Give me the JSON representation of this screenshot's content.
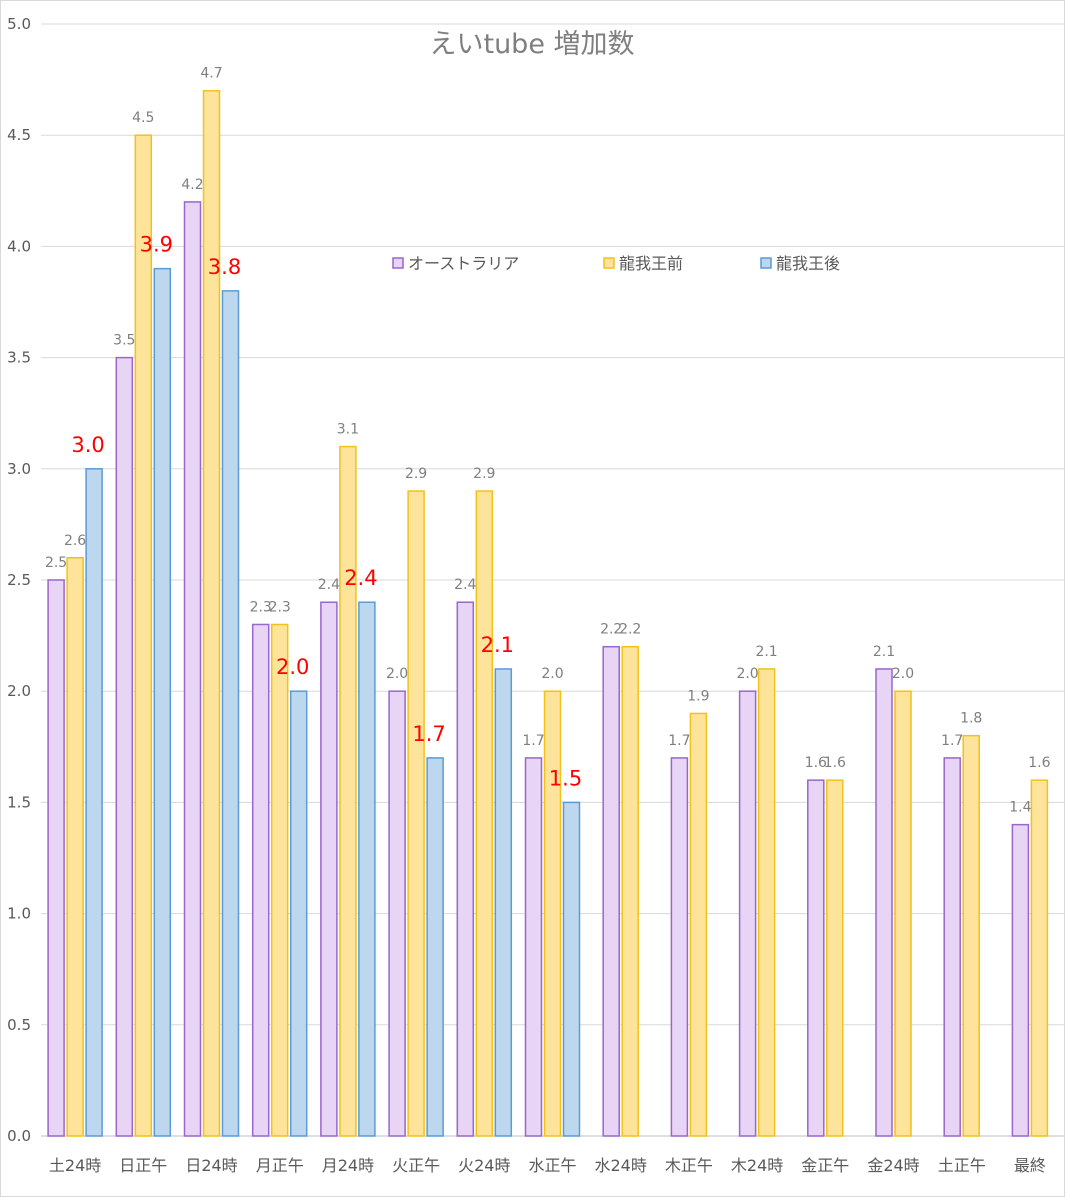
{
  "chart_data": {
    "type": "bar",
    "title": "えいtube  増加数",
    "xlabel": "",
    "ylabel": "",
    "ylim": [
      0,
      5
    ],
    "y_ticks": [
      "0.0",
      "0.5",
      "1.0",
      "1.5",
      "2.0",
      "2.5",
      "3.0",
      "3.5",
      "4.0",
      "4.5",
      "5.0"
    ],
    "grid": true,
    "legend_position": "upper-middle",
    "categories": [
      "土24時",
      "日正午",
      "日24時",
      "月正午",
      "月24時",
      "火正午",
      "火24時",
      "水正午",
      "水24時",
      "木正午",
      "木24時",
      "金正午",
      "金24時",
      "土正午",
      "最終"
    ],
    "series": [
      {
        "name": "オーストラリア",
        "fill": "#e8d5f5",
        "stroke": "#9966cc",
        "label_style": "gray",
        "values": [
          2.5,
          3.5,
          4.2,
          2.3,
          2.4,
          2.0,
          2.4,
          1.7,
          2.2,
          1.7,
          2.0,
          1.6,
          2.1,
          1.7,
          1.4
        ],
        "labels": [
          "2.5",
          "3.5",
          "4.2",
          "2.3",
          "2.4",
          "2.0",
          "2.4",
          "1.7",
          "2.2",
          "1.7",
          "2.0",
          "1.6",
          "2.1",
          "1.7",
          "1.4"
        ]
      },
      {
        "name": "龍我王前",
        "fill": "#fde49a",
        "stroke": "#f2c21a",
        "label_style": "gray",
        "values": [
          2.6,
          4.5,
          4.7,
          2.3,
          3.1,
          2.9,
          2.9,
          2.0,
          2.2,
          1.9,
          2.1,
          1.6,
          2.0,
          1.8,
          1.6
        ],
        "labels": [
          "2.6",
          "4.5",
          "4.7",
          "2.3",
          "3.1",
          "2.9",
          "2.9",
          "2.0",
          "2.2",
          "1.9",
          "2.1",
          "1.6",
          "2.0",
          "1.8",
          "1.6"
        ]
      },
      {
        "name": "龍我王後",
        "fill": "#bdd7ee",
        "stroke": "#5b9bd5",
        "label_style": "red",
        "values": [
          3.0,
          3.9,
          3.8,
          2.0,
          2.4,
          1.7,
          2.1,
          1.5,
          null,
          null,
          null,
          null,
          null,
          null,
          null
        ],
        "labels": [
          "3.0",
          "3.9",
          "3.8",
          "2.0",
          "2.4",
          "1.7",
          "2.1",
          "1.5",
          null,
          null,
          null,
          null,
          null,
          null,
          null
        ]
      }
    ]
  },
  "colors": {
    "gridline": "#d9d9d9",
    "axis": "#bfbfbf",
    "red_label": "#ff0000",
    "gray_label": "#7f7f7f"
  }
}
